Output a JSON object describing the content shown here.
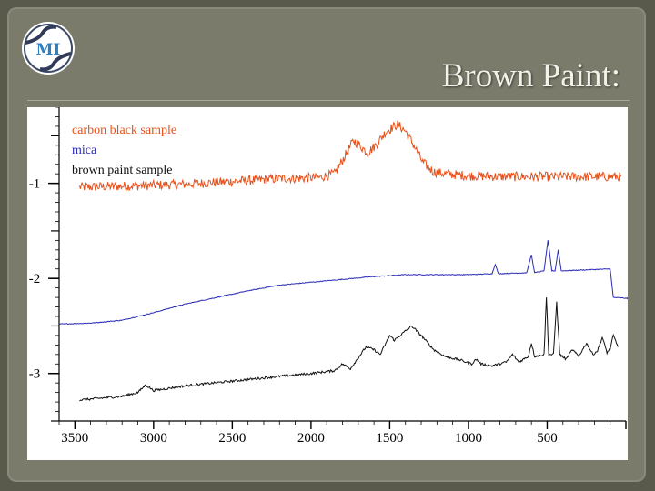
{
  "slide": {
    "title": "Brown Paint:",
    "logo_text": "MI"
  },
  "chart_data": {
    "type": "line",
    "title": "",
    "xlabel": "",
    "ylabel": "",
    "x_reversed": true,
    "xlim": [
      3600,
      0
    ],
    "ylim": [
      -3.5,
      -0.2
    ],
    "x_ticks": [
      3500,
      3000,
      2500,
      2000,
      1500,
      1000,
      500
    ],
    "y_ticks": [
      -1,
      -2,
      -3
    ],
    "grid": false,
    "legend_position": "top-left",
    "series": [
      {
        "name": "carbon black sample",
        "color": "#e8501a",
        "noise": 0.05,
        "points": [
          [
            3470,
            -1.04
          ],
          [
            3200,
            -1.03
          ],
          [
            3000,
            -1.02
          ],
          [
            2800,
            -1.01
          ],
          [
            2600,
            -0.99
          ],
          [
            2400,
            -0.97
          ],
          [
            2200,
            -0.95
          ],
          [
            1950,
            -0.94
          ],
          [
            1850,
            -0.9
          ],
          [
            1780,
            -0.7
          ],
          [
            1730,
            -0.55
          ],
          [
            1690,
            -0.6
          ],
          [
            1640,
            -0.68
          ],
          [
            1590,
            -0.6
          ],
          [
            1520,
            -0.45
          ],
          [
            1450,
            -0.38
          ],
          [
            1400,
            -0.45
          ],
          [
            1340,
            -0.62
          ],
          [
            1290,
            -0.78
          ],
          [
            1220,
            -0.88
          ],
          [
            1150,
            -0.9
          ],
          [
            1000,
            -0.92
          ],
          [
            800,
            -0.93
          ],
          [
            600,
            -0.93
          ],
          [
            400,
            -0.93
          ],
          [
            200,
            -0.93
          ],
          [
            30,
            -0.93
          ]
        ]
      },
      {
        "name": "mica",
        "color": "#2a2ab5",
        "noise": 0.004,
        "points": [
          [
            3600,
            -2.48
          ],
          [
            3400,
            -2.47
          ],
          [
            3200,
            -2.44
          ],
          [
            3000,
            -2.36
          ],
          [
            2800,
            -2.27
          ],
          [
            2600,
            -2.2
          ],
          [
            2400,
            -2.13
          ],
          [
            2200,
            -2.07
          ],
          [
            2000,
            -2.04
          ],
          [
            1800,
            -2.01
          ],
          [
            1600,
            -1.98
          ],
          [
            1400,
            -1.96
          ],
          [
            1200,
            -1.96
          ],
          [
            1000,
            -1.96
          ],
          [
            850,
            -1.95
          ],
          [
            830,
            -1.85
          ],
          [
            810,
            -1.95
          ],
          [
            630,
            -1.94
          ],
          [
            600,
            -1.75
          ],
          [
            580,
            -1.94
          ],
          [
            520,
            -1.92
          ],
          [
            495,
            -1.6
          ],
          [
            470,
            -1.92
          ],
          [
            450,
            -1.92
          ],
          [
            430,
            -1.7
          ],
          [
            410,
            -1.92
          ],
          [
            100,
            -1.9
          ],
          [
            80,
            -2.2
          ],
          [
            -100,
            -2.22
          ]
        ]
      },
      {
        "name": "brown paint sample",
        "color": "#111111",
        "noise": 0.012,
        "points": [
          [
            3470,
            -3.28
          ],
          [
            3200,
            -3.24
          ],
          [
            3100,
            -3.2
          ],
          [
            3050,
            -3.12
          ],
          [
            3000,
            -3.18
          ],
          [
            2800,
            -3.13
          ],
          [
            2500,
            -3.08
          ],
          [
            2200,
            -3.03
          ],
          [
            2000,
            -3.0
          ],
          [
            1850,
            -2.97
          ],
          [
            1800,
            -2.9
          ],
          [
            1750,
            -2.95
          ],
          [
            1650,
            -2.72
          ],
          [
            1600,
            -2.75
          ],
          [
            1560,
            -2.8
          ],
          [
            1500,
            -2.6
          ],
          [
            1470,
            -2.65
          ],
          [
            1420,
            -2.58
          ],
          [
            1360,
            -2.5
          ],
          [
            1300,
            -2.6
          ],
          [
            1220,
            -2.75
          ],
          [
            1150,
            -2.82
          ],
          [
            1050,
            -2.86
          ],
          [
            980,
            -2.9
          ],
          [
            950,
            -2.85
          ],
          [
            920,
            -2.9
          ],
          [
            850,
            -2.92
          ],
          [
            760,
            -2.88
          ],
          [
            720,
            -2.8
          ],
          [
            680,
            -2.88
          ],
          [
            620,
            -2.82
          ],
          [
            600,
            -2.68
          ],
          [
            580,
            -2.82
          ],
          [
            520,
            -2.8
          ],
          [
            505,
            -2.2
          ],
          [
            490,
            -2.8
          ],
          [
            460,
            -2.8
          ],
          [
            440,
            -2.25
          ],
          [
            420,
            -2.8
          ],
          [
            380,
            -2.85
          ],
          [
            340,
            -2.75
          ],
          [
            300,
            -2.82
          ],
          [
            250,
            -2.68
          ],
          [
            210,
            -2.8
          ],
          [
            180,
            -2.76
          ],
          [
            150,
            -2.62
          ],
          [
            120,
            -2.78
          ],
          [
            100,
            -2.74
          ],
          [
            80,
            -2.6
          ],
          [
            50,
            -2.72
          ]
        ]
      }
    ]
  }
}
